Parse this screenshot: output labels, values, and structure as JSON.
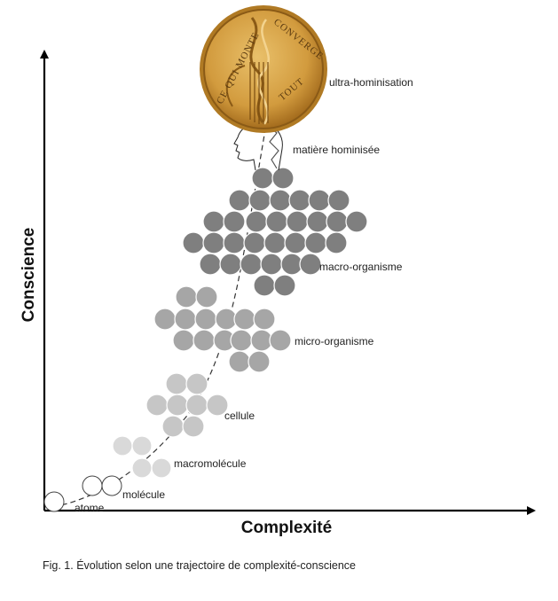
{
  "diagram": {
    "axes": {
      "x_title": "Complexité",
      "y_title": "Conscience"
    },
    "stages": [
      {
        "id": "atome",
        "label": "atome",
        "color": "#ffffff"
      },
      {
        "id": "molecule",
        "label": "molécule",
        "color": "#ffffff"
      },
      {
        "id": "macromolecule",
        "label": "macromolécule",
        "color": "#d9d9d9"
      },
      {
        "id": "cellule",
        "label": "cellule",
        "color": "#c6c6c6"
      },
      {
        "id": "micro",
        "label": "micro-organisme",
        "color": "#a6a6a6"
      },
      {
        "id": "macro",
        "label": "macro-organisme",
        "color": "#7f7f7f"
      },
      {
        "id": "hominisee",
        "label": "matière hominisée"
      },
      {
        "id": "ultra",
        "label": "ultra-hominisation"
      }
    ],
    "medal": {
      "inscription_left": "CE QUI MONTE",
      "inscription_right": "CONVERGE",
      "inscription_bottom": "TOUT",
      "colors": {
        "rim": "#c9962f",
        "face": "#d9a650",
        "dark": "#8a5a16"
      }
    },
    "trajectory": {
      "style": "dashed"
    }
  },
  "caption": "Fig. 1. Évolution selon une trajectoire de complexité-conscience"
}
